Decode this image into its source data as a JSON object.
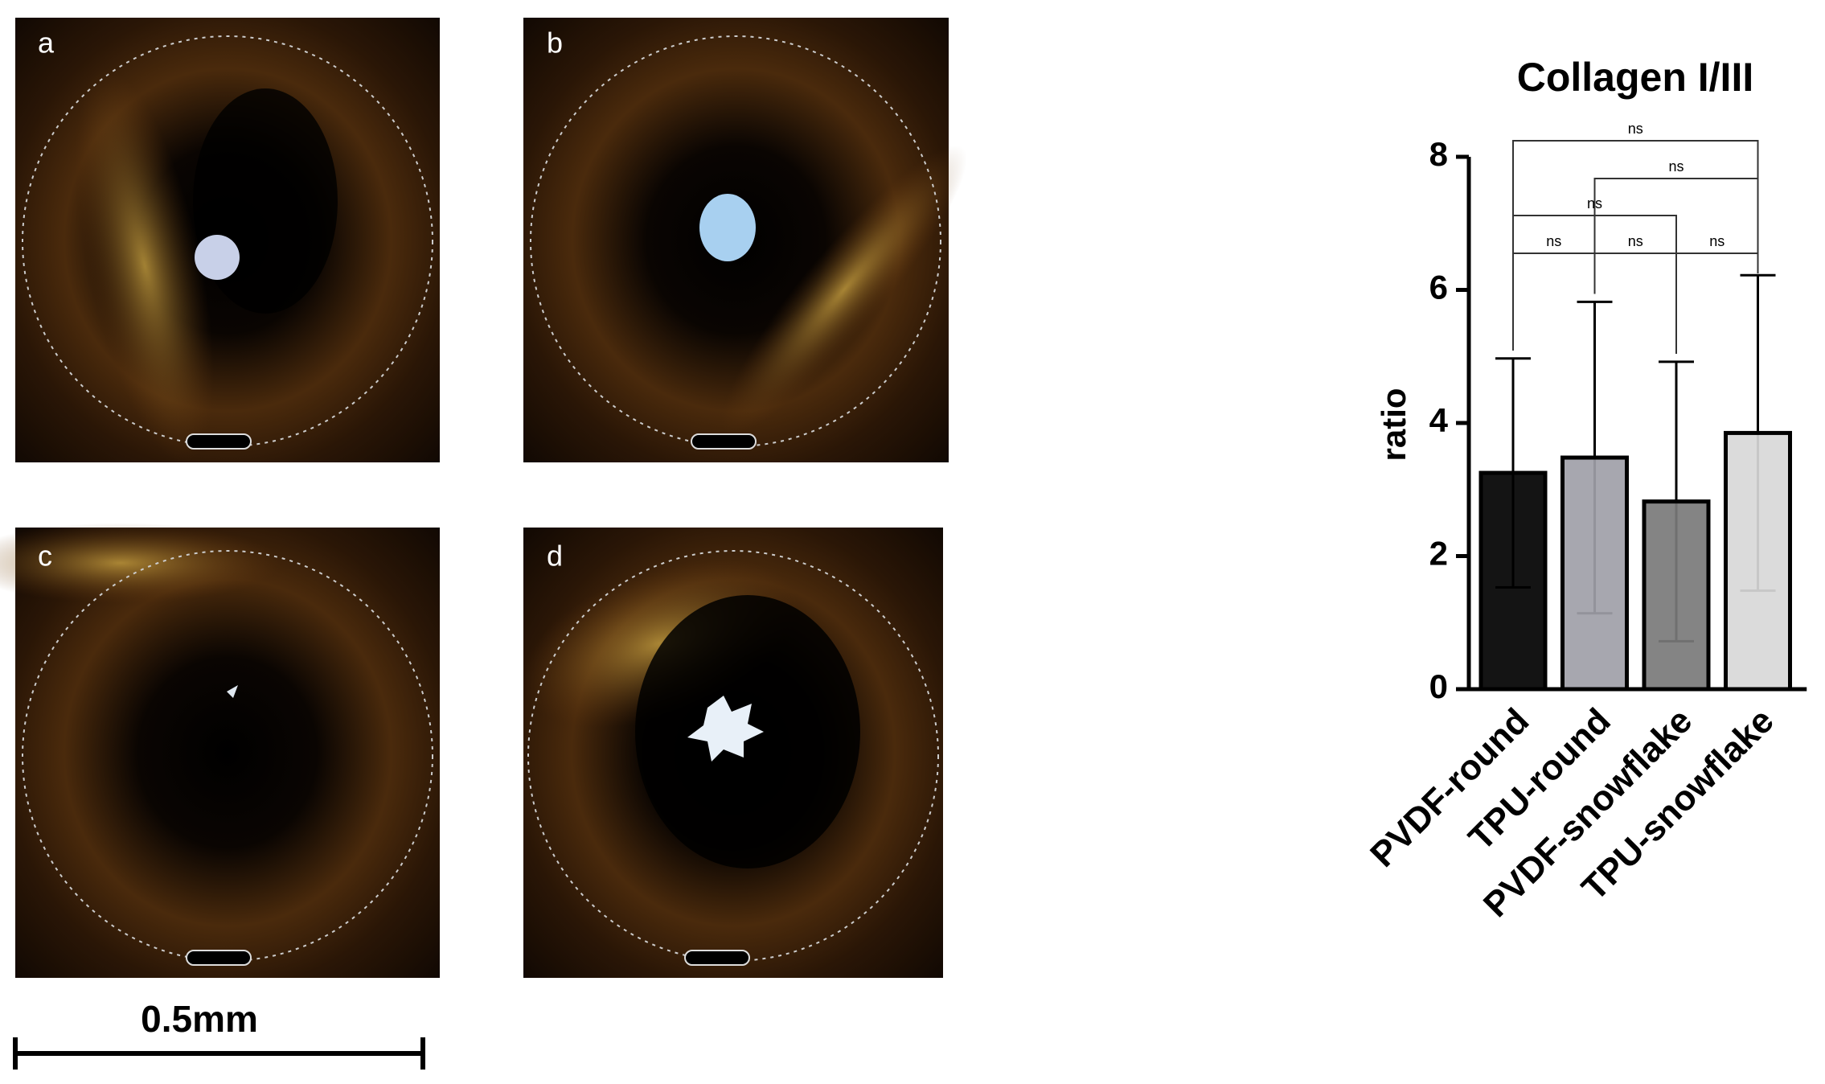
{
  "panels": [
    {
      "label": "a"
    },
    {
      "label": "b"
    },
    {
      "label": "c"
    },
    {
      "label": "d"
    }
  ],
  "scale_bar": "0.5mm",
  "chart_data": {
    "type": "bar",
    "title": "Collagen I/III",
    "y_label": "ratio",
    "categories": [
      "PVDF-round",
      "TPU-round",
      "PVDF-snowflake",
      "TPU-snowflake"
    ],
    "values": [
      3.25,
      3.48,
      2.82,
      3.85
    ],
    "errors": [
      1.72,
      2.34,
      2.1,
      2.37
    ],
    "colors": [
      "#000000",
      "#a0a0a8",
      "#7a7a7a",
      "#d8d8d8"
    ],
    "ylim": [
      0,
      8
    ],
    "yticks": [
      0,
      2,
      4,
      6,
      8
    ],
    "comparisons": [
      {
        "pair": [
          0,
          3
        ],
        "label": "ns"
      },
      {
        "pair": [
          1,
          3
        ],
        "label": "ns"
      },
      {
        "pair": [
          0,
          2
        ],
        "label": "ns"
      },
      {
        "pair": [
          0,
          1
        ],
        "label": "ns"
      },
      {
        "pair": [
          1,
          2
        ],
        "label": "ns"
      },
      {
        "pair": [
          2,
          3
        ],
        "label": "ns"
      }
    ]
  }
}
